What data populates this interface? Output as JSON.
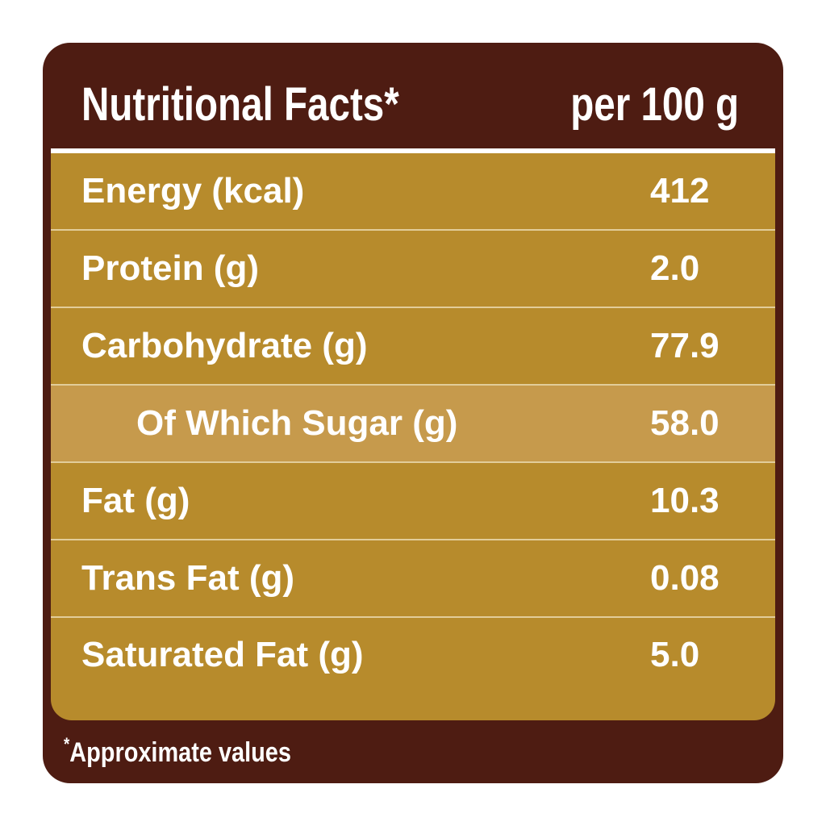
{
  "header": {
    "title": "Nutritional Facts*",
    "per": "per 100 g"
  },
  "rows": [
    {
      "label": "Energy (kcal)",
      "value": "412"
    },
    {
      "label": "Protein (g)",
      "value": "2.0"
    },
    {
      "label": "Carbohydrate (g)",
      "value": "77.9"
    },
    {
      "label": "Of Which Sugar (g)",
      "value": "58.0"
    },
    {
      "label": "Fat (g)",
      "value": "10.3"
    },
    {
      "label": "Trans Fat (g)",
      "value": "0.08"
    },
    {
      "label": "Saturated Fat (g)",
      "value": "5.0"
    }
  ],
  "footnote": {
    "mark": "*",
    "text": "Approximate values"
  },
  "colors": {
    "frame": "#4e1c12",
    "table": "#b78b2c",
    "highlight_row": "#c69a4c",
    "text": "#ffffff"
  }
}
